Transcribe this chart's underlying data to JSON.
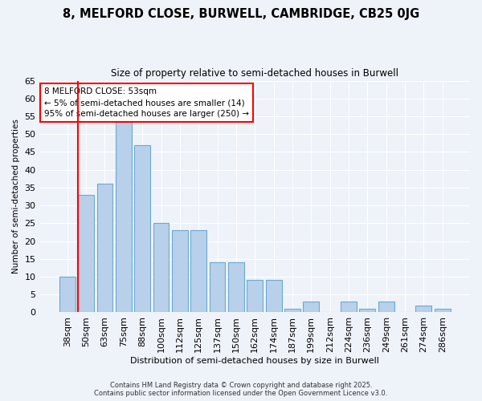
{
  "title": "8, MELFORD CLOSE, BURWELL, CAMBRIDGE, CB25 0JG",
  "subtitle": "Size of property relative to semi-detached houses in Burwell",
  "xlabel": "Distribution of semi-detached houses by size in Burwell",
  "ylabel": "Number of semi-detached properties",
  "categories": [
    "38sqm",
    "50sqm",
    "63sqm",
    "75sqm",
    "88sqm",
    "100sqm",
    "112sqm",
    "125sqm",
    "137sqm",
    "150sqm",
    "162sqm",
    "174sqm",
    "187sqm",
    "199sqm",
    "212sqm",
    "224sqm",
    "236sqm",
    "249sqm",
    "261sqm",
    "274sqm",
    "286sqm"
  ],
  "values": [
    10,
    33,
    36,
    54,
    47,
    25,
    23,
    23,
    14,
    14,
    9,
    9,
    1,
    3,
    0,
    3,
    1,
    3,
    0,
    2,
    1
  ],
  "bar_color": "#b8d0ea",
  "bar_edge_color": "#6aaad4",
  "background_color": "#eef2f9",
  "grid_color": "#ffffff",
  "annotation_box_text": "8 MELFORD CLOSE: 53sqm\n← 5% of semi-detached houses are smaller (14)\n95% of semi-detached houses are larger (250) →",
  "redline_index": 0.575,
  "ylim": [
    0,
    65
  ],
  "yticks": [
    0,
    5,
    10,
    15,
    20,
    25,
    30,
    35,
    40,
    45,
    50,
    55,
    60,
    65
  ],
  "footer_line1": "Contains HM Land Registry data © Crown copyright and database right 2025.",
  "footer_line2": "Contains public sector information licensed under the Open Government Licence v3.0."
}
